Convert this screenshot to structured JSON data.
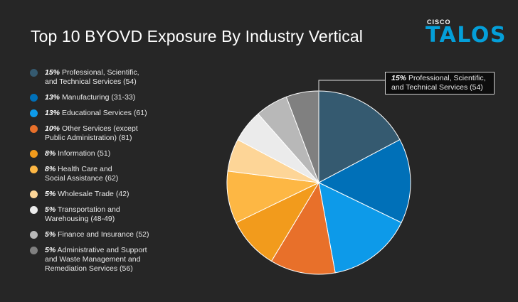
{
  "title": "Top 10 BYOVD Exposure By Industry Vertical",
  "brand": {
    "company": "CISCO",
    "product": "TALOS"
  },
  "chart_data": {
    "type": "pie",
    "title": "Top 10 BYOVD Exposure By Industry Vertical",
    "slices": [
      {
        "pct": "15%",
        "label": "Professional, Scientific, and Technical Services (54)",
        "line1": "Professional, Scientific,",
        "line2": "and Technical Services (54)",
        "value": 15,
        "color": "#355a70"
      },
      {
        "pct": "13%",
        "label": "Manufacturing (31-33)",
        "line1": "Manufacturing (31-33)",
        "line2": "",
        "value": 13,
        "color": "#0070b8"
      },
      {
        "pct": "13%",
        "label": "Educational Services (61)",
        "line1": "Educational Services (61)",
        "line2": "",
        "value": 13,
        "color": "#0d9ae9"
      },
      {
        "pct": "10%",
        "label": "Other Services (except Public Administration) (81)",
        "line1": "Other Services (except",
        "line2": "Public Administration) (81)",
        "value": 10,
        "color": "#e8702a"
      },
      {
        "pct": "8%",
        "label": "Information (51)",
        "line1": "Information (51)",
        "line2": "",
        "value": 8,
        "color": "#f29b1c"
      },
      {
        "pct": "8%",
        "label": "Health Care and Social Assistance (62)",
        "line1": "Health Care and",
        "line2": "Social Assistance (62)",
        "value": 8,
        "color": "#fdb744"
      },
      {
        "pct": "5%",
        "label": "Wholesale Trade (42)",
        "line1": "Wholesale Trade (42)",
        "line2": "",
        "value": 5,
        "color": "#fdd597"
      },
      {
        "pct": "5%",
        "label": "Transportation and Warehousing (48-49)",
        "line1": "Transportation and",
        "line2": "Warehousing (48-49)",
        "value": 5,
        "color": "#ebebeb"
      },
      {
        "pct": "5%",
        "label": "Finance and Insurance (52)",
        "line1": "Finance and Insurance (52)",
        "line2": "",
        "value": 5,
        "color": "#b8b8b8"
      },
      {
        "pct": "5%",
        "label": "Administrative and Support and Waste Management and Remediation Services (56)",
        "line1": "Administrative and Support",
        "line2": "and Waste Management and",
        "line3": "Remediation Services (56)",
        "value": 5,
        "color": "#808080"
      }
    ],
    "annotation": {
      "pct": "15%",
      "line1": "Professional, Scientific,",
      "line2": "and Technical Services (54)"
    },
    "legend_position": "left"
  }
}
